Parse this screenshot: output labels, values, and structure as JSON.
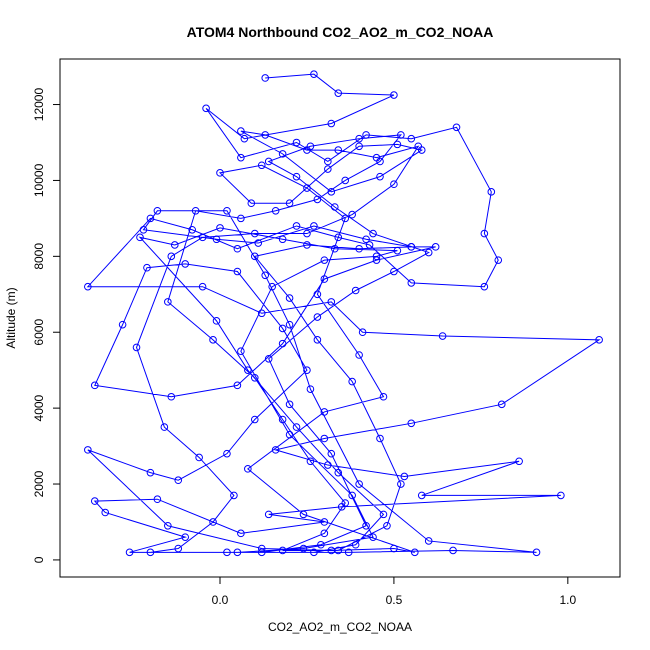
{
  "chart_data": {
    "type": "scatter",
    "title": "ATOM4 Northbound CO2_AO2_m_CO2_NOAA",
    "xlabel": "CO2_AO2_m_CO2_NOAA",
    "ylabel": "Altitude (m)",
    "xlim": [
      -0.46,
      1.15
    ],
    "ylim": [
      -450,
      13200
    ],
    "x_ticks": [
      0.0,
      0.5,
      1.0
    ],
    "x_tick_labels": [
      "0.0",
      "0.5",
      "1.0"
    ],
    "y_ticks": [
      0,
      2000,
      4000,
      6000,
      8000,
      10000,
      12000
    ],
    "y_tick_labels": [
      "0",
      "2000",
      "4000",
      "6000",
      "8000",
      "10000",
      "12000"
    ],
    "grid": false,
    "series": [
      {
        "color": "#0000ff",
        "marker": "open-circle",
        "connected": true,
        "points": [
          [
            0.13,
            12700
          ],
          [
            0.27,
            12800
          ],
          [
            0.34,
            12300
          ],
          [
            0.5,
            12250
          ],
          [
            0.32,
            11500
          ],
          [
            0.07,
            11100
          ],
          [
            -0.04,
            11900
          ],
          [
            0.06,
            10600
          ],
          [
            0.22,
            11000
          ],
          [
            0.31,
            10500
          ],
          [
            0.42,
            11200
          ],
          [
            0.55,
            11100
          ],
          [
            0.68,
            11400
          ],
          [
            0.78,
            9700
          ],
          [
            0.76,
            8600
          ],
          [
            0.8,
            7900
          ],
          [
            0.76,
            7200
          ],
          [
            0.55,
            7300
          ],
          [
            0.43,
            8300
          ],
          [
            0.34,
            8500
          ],
          [
            0.22,
            8800
          ],
          [
            0.05,
            8200
          ],
          [
            -0.08,
            8700
          ],
          [
            -0.2,
            9000
          ],
          [
            -0.38,
            7200
          ],
          [
            -0.05,
            7200
          ],
          [
            0.12,
            6500
          ],
          [
            0.32,
            6800
          ],
          [
            0.41,
            6000
          ],
          [
            0.64,
            5900
          ],
          [
            1.09,
            5800
          ],
          [
            0.81,
            4100
          ],
          [
            0.55,
            3600
          ],
          [
            0.3,
            3200
          ],
          [
            0.16,
            2900
          ],
          [
            0.31,
            2500
          ],
          [
            0.53,
            2200
          ],
          [
            0.86,
            2600
          ],
          [
            0.58,
            1700
          ],
          [
            0.98,
            1700
          ],
          [
            0.35,
            1400
          ],
          [
            0.14,
            1200
          ],
          [
            0.3,
            1000
          ],
          [
            0.06,
            700
          ],
          [
            -0.18,
            1600
          ],
          [
            -0.36,
            1550
          ],
          [
            -0.33,
            1250
          ],
          [
            -0.1,
            600
          ],
          [
            -0.26,
            200
          ],
          [
            0.02,
            200
          ],
          [
            0.37,
            200
          ],
          [
            0.67,
            250
          ],
          [
            0.91,
            200
          ],
          [
            0.6,
            500
          ],
          [
            0.4,
            2000
          ],
          [
            0.26,
            4500
          ],
          [
            0.2,
            6200
          ],
          [
            0.13,
            7500
          ],
          [
            0.02,
            9200
          ],
          [
            -0.18,
            9200
          ],
          [
            -0.22,
            8700
          ],
          [
            -0.01,
            8450
          ],
          [
            0.11,
            8350
          ],
          [
            0.27,
            8800
          ],
          [
            0.42,
            8450
          ],
          [
            0.55,
            8250
          ],
          [
            0.62,
            8250
          ],
          [
            0.45,
            7900
          ],
          [
            0.3,
            7400
          ],
          [
            0.18,
            5700
          ],
          [
            0.05,
            4600
          ],
          [
            -0.14,
            4300
          ],
          [
            -0.36,
            4600
          ],
          [
            -0.28,
            6200
          ],
          [
            -0.21,
            7700
          ],
          [
            -0.1,
            7800
          ],
          [
            0.05,
            7600
          ],
          [
            0.18,
            6100
          ],
          [
            0.25,
            5000
          ],
          [
            0.1,
            3700
          ],
          [
            0.02,
            2800
          ],
          [
            -0.12,
            2100
          ],
          [
            -0.2,
            2300
          ],
          [
            -0.38,
            2900
          ],
          [
            -0.15,
            900
          ],
          [
            0.12,
            300
          ],
          [
            0.32,
            250
          ],
          [
            0.5,
            300
          ],
          [
            0.56,
            200
          ],
          [
            0.24,
            1200
          ],
          [
            0.08,
            2400
          ],
          [
            0.3,
            3900
          ],
          [
            0.47,
            4300
          ],
          [
            0.4,
            5400
          ],
          [
            0.28,
            7000
          ],
          [
            0.36,
            9000
          ],
          [
            0.25,
            9800
          ],
          [
            0.12,
            10400
          ],
          [
            0.0,
            10200
          ],
          [
            0.09,
            9400
          ],
          [
            0.2,
            9400
          ],
          [
            0.31,
            10300
          ],
          [
            0.4,
            10900
          ],
          [
            0.51,
            10950
          ],
          [
            0.58,
            10800
          ],
          [
            0.46,
            10100
          ],
          [
            0.32,
            9700
          ],
          [
            0.18,
            10700
          ],
          [
            0.06,
            11300
          ],
          [
            0.13,
            11200
          ],
          [
            0.25,
            10800
          ],
          [
            0.34,
            10800
          ],
          [
            0.45,
            10600
          ],
          [
            0.57,
            10900
          ],
          [
            0.5,
            9900
          ],
          [
            0.38,
            9100
          ],
          [
            0.25,
            8600
          ],
          [
            0.1,
            8600
          ],
          [
            -0.05,
            8500
          ],
          [
            -0.14,
            8000
          ],
          [
            -0.24,
            5600
          ],
          [
            -0.16,
            3500
          ],
          [
            -0.06,
            2700
          ],
          [
            0.04,
            1700
          ],
          [
            -0.02,
            1000
          ],
          [
            -0.12,
            300
          ],
          [
            -0.2,
            200
          ],
          [
            0.05,
            200
          ],
          [
            0.24,
            300
          ],
          [
            0.44,
            600
          ],
          [
            0.38,
            1700
          ],
          [
            0.2,
            3300
          ],
          [
            0.06,
            5500
          ],
          [
            0.15,
            7200
          ],
          [
            0.3,
            7900
          ],
          [
            0.45,
            8000
          ],
          [
            0.51,
            8150
          ],
          [
            0.33,
            8200
          ],
          [
            0.18,
            8450
          ],
          [
            0.0,
            8750
          ],
          [
            -0.13,
            8300
          ],
          [
            -0.23,
            8500
          ],
          [
            -0.01,
            6300
          ],
          [
            0.08,
            5000
          ],
          [
            0.22,
            3500
          ],
          [
            0.34,
            2300
          ],
          [
            0.47,
            1200
          ],
          [
            0.39,
            400
          ],
          [
            0.27,
            200
          ],
          [
            0.12,
            200
          ],
          [
            0.29,
            400
          ],
          [
            0.42,
            900
          ],
          [
            0.32,
            2800
          ],
          [
            0.2,
            4100
          ],
          [
            0.14,
            5300
          ],
          [
            0.28,
            6400
          ],
          [
            0.39,
            7100
          ],
          [
            0.5,
            7600
          ],
          [
            0.6,
            8100
          ],
          [
            0.44,
            8600
          ],
          [
            0.33,
            9300
          ],
          [
            0.22,
            10100
          ],
          [
            0.14,
            10500
          ],
          [
            0.26,
            10900
          ],
          [
            0.4,
            11100
          ],
          [
            0.52,
            11200
          ],
          [
            0.46,
            10500
          ],
          [
            0.36,
            10000
          ],
          [
            0.28,
            9500
          ],
          [
            0.16,
            9200
          ],
          [
            0.06,
            9000
          ],
          [
            -0.07,
            9200
          ],
          [
            -0.15,
            6800
          ],
          [
            -0.02,
            5800
          ],
          [
            0.1,
            4800
          ],
          [
            0.18,
            3700
          ],
          [
            0.26,
            2600
          ],
          [
            0.36,
            1500
          ],
          [
            0.3,
            700
          ],
          [
            0.18,
            250
          ],
          [
            0.34,
            250
          ],
          [
            0.48,
            900
          ],
          [
            0.52,
            2000
          ],
          [
            0.46,
            3200
          ],
          [
            0.38,
            4700
          ],
          [
            0.28,
            5800
          ],
          [
            0.2,
            6900
          ],
          [
            0.1,
            8000
          ],
          [
            0.25,
            8300
          ],
          [
            0.4,
            8200
          ],
          [
            0.55,
            8250
          ]
        ]
      }
    ]
  }
}
